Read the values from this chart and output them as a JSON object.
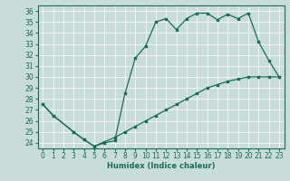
{
  "xlabel": "Humidex (Indice chaleur)",
  "ylabel": "",
  "bg_color": "#c8ddd8",
  "line_color": "#1a6b5a",
  "grid_color": "#ffffff",
  "xlim": [
    -0.5,
    23.5
  ],
  "ylim": [
    23.5,
    36.5
  ],
  "xticks": [
    0,
    1,
    2,
    3,
    4,
    5,
    6,
    7,
    8,
    9,
    10,
    11,
    12,
    13,
    14,
    15,
    16,
    17,
    18,
    19,
    20,
    21,
    22,
    23
  ],
  "yticks": [
    24,
    25,
    26,
    27,
    28,
    29,
    30,
    31,
    32,
    33,
    34,
    35,
    36
  ],
  "upper_line": [
    [
      0,
      27.5
    ],
    [
      1,
      26.5
    ],
    [
      3,
      25.0
    ],
    [
      4,
      24.3
    ],
    [
      5,
      23.7
    ],
    [
      6,
      24.0
    ],
    [
      7,
      24.2
    ],
    [
      8,
      28.5
    ],
    [
      9,
      31.7
    ],
    [
      10,
      32.8
    ],
    [
      11,
      35.0
    ],
    [
      12,
      35.3
    ],
    [
      13,
      34.3
    ],
    [
      14,
      35.3
    ],
    [
      15,
      35.8
    ],
    [
      16,
      35.8
    ],
    [
      17,
      35.2
    ],
    [
      18,
      35.7
    ],
    [
      19,
      35.3
    ],
    [
      20,
      35.8
    ],
    [
      21,
      33.2
    ],
    [
      22,
      31.5
    ],
    [
      23,
      30.0
    ]
  ],
  "lower_line": [
    [
      0,
      27.5
    ],
    [
      1,
      26.5
    ],
    [
      3,
      25.0
    ],
    [
      4,
      24.3
    ],
    [
      5,
      23.7
    ],
    [
      6,
      24.1
    ],
    [
      7,
      24.5
    ],
    [
      8,
      25.0
    ],
    [
      9,
      25.5
    ],
    [
      10,
      26.0
    ],
    [
      11,
      26.5
    ],
    [
      12,
      27.0
    ],
    [
      13,
      27.5
    ],
    [
      14,
      28.0
    ],
    [
      15,
      28.5
    ],
    [
      16,
      29.0
    ],
    [
      17,
      29.3
    ],
    [
      18,
      29.6
    ],
    [
      19,
      29.8
    ],
    [
      20,
      30.0
    ],
    [
      21,
      30.0
    ],
    [
      22,
      30.0
    ],
    [
      23,
      30.0
    ]
  ]
}
